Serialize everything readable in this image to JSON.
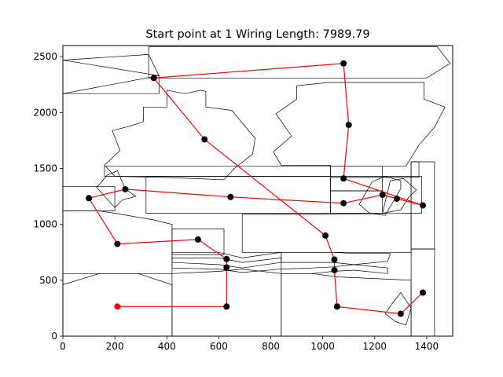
{
  "chart_data": {
    "type": "scatter",
    "title": "Start point at 1 Wiring Length: 7989.79",
    "xlabel": "",
    "ylabel": "",
    "xlim": [
      0,
      1500
    ],
    "ylim": [
      0,
      2600
    ],
    "xticks": [
      0,
      200,
      400,
      600,
      800,
      1000,
      1200,
      1400
    ],
    "yticks": [
      0,
      500,
      1000,
      1500,
      2000,
      2500
    ],
    "grid": false,
    "colors": {
      "wire": "#ff0000",
      "point": "#000000",
      "start_point": "#ff0000",
      "outline": "#000000"
    },
    "start_point": {
      "x": 210,
      "y": 265
    },
    "route": [
      {
        "x": 210,
        "y": 265
      },
      {
        "x": 630,
        "y": 265
      },
      {
        "x": 630,
        "y": 615
      },
      {
        "x": 630,
        "y": 690
      },
      {
        "x": 520,
        "y": 865
      },
      {
        "x": 210,
        "y": 825
      },
      {
        "x": 100,
        "y": 1235
      },
      {
        "x": 240,
        "y": 1315
      },
      {
        "x": 645,
        "y": 1245
      },
      {
        "x": 1080,
        "y": 1190
      },
      {
        "x": 1230,
        "y": 1265
      },
      {
        "x": 1285,
        "y": 1230
      },
      {
        "x": 1385,
        "y": 1170
      },
      {
        "x": 1080,
        "y": 1410
      },
      {
        "x": 1100,
        "y": 1890
      },
      {
        "x": 1080,
        "y": 2440
      },
      {
        "x": 350,
        "y": 2310
      },
      {
        "x": 545,
        "y": 1760
      },
      {
        "x": 1010,
        "y": 900
      },
      {
        "x": 1045,
        "y": 685
      },
      {
        "x": 1045,
        "y": 590
      },
      {
        "x": 1055,
        "y": 265
      },
      {
        "x": 1300,
        "y": 200
      },
      {
        "x": 1385,
        "y": 390
      }
    ],
    "outlines": [
      [
        [
          0,
          2470
        ],
        [
          330,
          2520
        ],
        [
          370,
          2330
        ],
        [
          0,
          2170
        ]
      ],
      [
        [
          0,
          2170
        ],
        [
          370,
          2170
        ],
        [
          370,
          2330
        ],
        [
          0,
          2470
        ]
      ],
      [
        [
          330,
          2590
        ],
        [
          1440,
          2590
        ],
        [
          1490,
          2440
        ],
        [
          1400,
          2310
        ],
        [
          330,
          2310
        ]
      ],
      [
        [
          550,
          2190
        ],
        [
          530,
          2200
        ],
        [
          470,
          2170
        ],
        [
          400,
          2200
        ],
        [
          400,
          2050
        ],
        [
          310,
          2050
        ],
        [
          310,
          1920
        ],
        [
          260,
          1880
        ],
        [
          190,
          1840
        ],
        [
          220,
          1660
        ],
        [
          160,
          1530
        ],
        [
          200,
          1430
        ],
        [
          390,
          1420
        ],
        [
          620,
          1400
        ],
        [
          660,
          1500
        ],
        [
          730,
          1630
        ],
        [
          740,
          1770
        ],
        [
          700,
          1880
        ],
        [
          650,
          2020
        ],
        [
          550,
          2050
        ]
      ],
      [
        [
          1390,
          2270
        ],
        [
          1390,
          2120
        ],
        [
          1470,
          2050
        ],
        [
          1430,
          1870
        ],
        [
          1370,
          1710
        ],
        [
          1320,
          1520
        ],
        [
          850,
          1520
        ],
        [
          840,
          1530
        ],
        [
          810,
          1650
        ],
        [
          880,
          1790
        ],
        [
          820,
          1990
        ],
        [
          900,
          2120
        ],
        [
          900,
          2240
        ],
        [
          1020,
          2270
        ]
      ],
      [
        [
          210,
          1480
        ],
        [
          240,
          1320
        ],
        [
          280,
          1250
        ],
        [
          230,
          1220
        ],
        [
          200,
          1150
        ],
        [
          130,
          1330
        ],
        [
          170,
          1440
        ]
      ],
      [
        [
          0,
          1340
        ],
        [
          200,
          1340
        ],
        [
          200,
          1120
        ],
        [
          0,
          1120
        ]
      ],
      [
        [
          0,
          1120
        ],
        [
          140,
          1120
        ],
        [
          200,
          1100
        ],
        [
          350,
          1040
        ],
        [
          420,
          1000
        ],
        [
          420,
          560
        ],
        [
          0,
          560
        ],
        [
          0,
          1040
        ]
      ],
      [
        [
          160,
          1430
        ],
        [
          1380,
          1430
        ],
        [
          1380,
          1100
        ],
        [
          1340,
          1100
        ],
        [
          1340,
          1560
        ],
        [
          1370,
          1560
        ],
        [
          1370,
          1420
        ],
        [
          1030,
          1420
        ],
        [
          1030,
          1530
        ],
        [
          850,
          1530
        ],
        [
          840,
          1520
        ],
        [
          160,
          1520
        ]
      ],
      [
        [
          320,
          1430
        ],
        [
          1030,
          1430
        ],
        [
          1030,
          1100
        ],
        [
          320,
          1100
        ]
      ],
      [
        [
          1030,
          1520
        ],
        [
          1230,
          1520
        ],
        [
          1230,
          1300
        ],
        [
          1030,
          1300
        ]
      ],
      [
        [
          1030,
          1300
        ],
        [
          1230,
          1300
        ],
        [
          1230,
          1100
        ],
        [
          1030,
          1100
        ]
      ],
      [
        [
          1190,
          1380
        ],
        [
          1240,
          1430
        ],
        [
          1300,
          1390
        ],
        [
          1300,
          1320
        ],
        [
          1240,
          1080
        ],
        [
          1180,
          1100
        ],
        [
          1140,
          1180
        ]
      ],
      [
        [
          1260,
          1390
        ],
        [
          1310,
          1410
        ],
        [
          1360,
          1310
        ],
        [
          1330,
          1240
        ],
        [
          1300,
          1130
        ],
        [
          1230,
          1100
        ],
        [
          1240,
          1200
        ]
      ],
      [
        [
          1340,
          1560
        ],
        [
          1430,
          1560
        ],
        [
          1430,
          780
        ],
        [
          1340,
          780
        ]
      ],
      [
        [
          1340,
          780
        ],
        [
          1430,
          780
        ],
        [
          1430,
          0
        ],
        [
          1340,
          0
        ]
      ],
      [
        [
          420,
          960
        ],
        [
          620,
          960
        ],
        [
          620,
          730
        ],
        [
          420,
          730
        ]
      ],
      [
        [
          690,
          1090
        ],
        [
          1000,
          1090
        ],
        [
          1340,
          1100
        ],
        [
          1340,
          750
        ],
        [
          690,
          750
        ]
      ],
      [
        [
          420,
          750
        ],
        [
          600,
          750
        ],
        [
          690,
          700
        ],
        [
          840,
          750
        ],
        [
          840,
          660
        ],
        [
          690,
          610
        ],
        [
          600,
          640
        ],
        [
          420,
          660
        ]
      ],
      [
        [
          420,
          700
        ],
        [
          600,
          700
        ],
        [
          690,
          660
        ],
        [
          840,
          700
        ],
        [
          840,
          600
        ],
        [
          690,
          570
        ],
        [
          600,
          600
        ],
        [
          420,
          610
        ]
      ],
      [
        [
          840,
          750
        ],
        [
          1040,
          750
        ],
        [
          1120,
          740
        ],
        [
          1260,
          740
        ],
        [
          1250,
          670
        ],
        [
          1120,
          640
        ],
        [
          1040,
          660
        ],
        [
          840,
          660
        ]
      ],
      [
        [
          840,
          600
        ],
        [
          960,
          610
        ],
        [
          1040,
          620
        ],
        [
          1120,
          640
        ],
        [
          1250,
          610
        ],
        [
          1250,
          560
        ],
        [
          1120,
          590
        ],
        [
          1040,
          580
        ],
        [
          960,
          560
        ],
        [
          840,
          560
        ]
      ],
      [
        [
          420,
          560
        ],
        [
          600,
          580
        ],
        [
          690,
          600
        ],
        [
          840,
          560
        ],
        [
          840,
          0
        ],
        [
          420,
          0
        ]
      ],
      [
        [
          0,
          460
        ],
        [
          140,
          560
        ],
        [
          290,
          560
        ],
        [
          420,
          460
        ],
        [
          420,
          0
        ],
        [
          0,
          0
        ]
      ],
      [
        [
          840,
          560
        ],
        [
          960,
          560
        ],
        [
          1060,
          530
        ],
        [
          1340,
          500
        ],
        [
          1340,
          0
        ],
        [
          840,
          0
        ]
      ],
      [
        [
          1270,
          300
        ],
        [
          1300,
          390
        ],
        [
          1340,
          250
        ],
        [
          1320,
          100
        ],
        [
          1280,
          130
        ],
        [
          1240,
          200
        ]
      ]
    ]
  }
}
